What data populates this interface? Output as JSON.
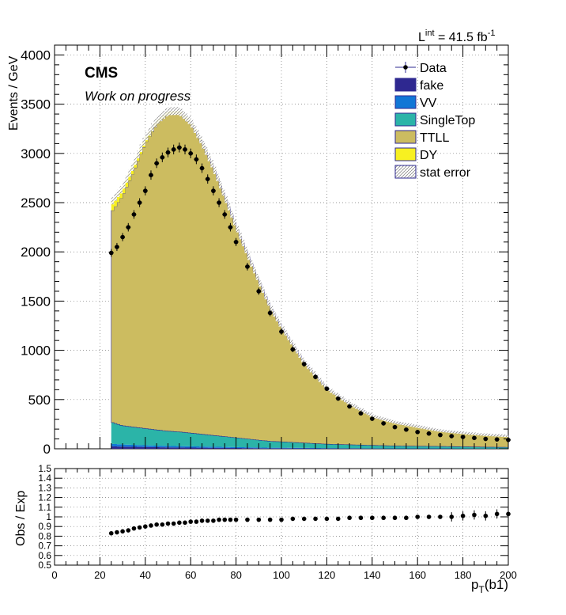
{
  "chart_data": {
    "type": "histogram",
    "lumi_label": "41.5 fb",
    "lumi_prefix": "L",
    "lumi_sup": "int",
    "lumi_unit_sup": "-1",
    "experiment": "CMS",
    "subtitle": "Work on progress",
    "ylabel": "Events / GeV",
    "ratio_ylabel": "Obs / Exp",
    "xlabel_main": "p",
    "xlabel_sub": "T",
    "xlabel_tail": "(b1)",
    "xlim": [
      0,
      200
    ],
    "ylim": [
      0,
      4100
    ],
    "ratio_ylim": [
      0.5,
      1.5
    ],
    "x_ticks": [
      "0",
      "20",
      "40",
      "60",
      "80",
      "100",
      "120",
      "140",
      "160",
      "180",
      "200"
    ],
    "y_ticks": [
      "0",
      "500",
      "1000",
      "1500",
      "2000",
      "2500",
      "3000",
      "3500",
      "4000"
    ],
    "ratio_ticks": [
      "0.5",
      "0.6",
      "0.7",
      "0.8",
      "0.9",
      "1",
      "1.1",
      "1.2",
      "1.3",
      "1.4",
      "1.5"
    ],
    "grid": true,
    "legend": [
      {
        "label": "Data",
        "kind": "marker",
        "color": "#000000"
      },
      {
        "label": "fake",
        "kind": "box",
        "color": "#2e2890"
      },
      {
        "label": "VV",
        "kind": "box",
        "color": "#1177d6"
      },
      {
        "label": "SingleTop",
        "kind": "box",
        "color": "#2bb4a8"
      },
      {
        "label": "TTLL",
        "kind": "box",
        "color": "#ccbc60"
      },
      {
        "label": "DY",
        "kind": "box",
        "color": "#f7f021"
      },
      {
        "label": "stat error",
        "kind": "hatch",
        "color": "#999999"
      }
    ],
    "colors": {
      "fake": "#2e2890",
      "VV": "#1177d6",
      "SingleTop": "#2bb4a8",
      "TTLL": "#ccbc60",
      "DY": "#f7f021",
      "Data": "#000000",
      "frame": "#000000"
    },
    "mc_stack": {
      "x": [
        25,
        30,
        35,
        40,
        45,
        50,
        55,
        60,
        65,
        70,
        75,
        80,
        85,
        90,
        95,
        100,
        110,
        120,
        130,
        140,
        150,
        160,
        170,
        180,
        190,
        200
      ],
      "fake": [
        25,
        22,
        20,
        18,
        16,
        14,
        13,
        12,
        11,
        10,
        9,
        8,
        7,
        6,
        5,
        5,
        4,
        3,
        3,
        2,
        2,
        2,
        2,
        1,
        1,
        1
      ],
      "VV": [
        25,
        22,
        20,
        18,
        16,
        15,
        14,
        13,
        12,
        11,
        10,
        9,
        8,
        7,
        6,
        6,
        5,
        4,
        3,
        3,
        2,
        2,
        2,
        2,
        1,
        1
      ],
      "SingleTop": [
        220,
        190,
        180,
        170,
        160,
        150,
        145,
        135,
        125,
        115,
        105,
        95,
        85,
        75,
        65,
        60,
        50,
        40,
        35,
        30,
        25,
        22,
        20,
        18,
        15,
        13
      ],
      "TTLL": [
        2130,
        2330,
        2600,
        2890,
        3100,
        3220,
        3240,
        3150,
        2960,
        2720,
        2440,
        2150,
        1880,
        1620,
        1370,
        1170,
        820,
        570,
        420,
        300,
        240,
        200,
        160,
        140,
        125,
        115
      ],
      "DY": [
        100,
        85,
        70,
        55,
        40,
        30,
        20,
        15,
        10,
        8,
        6,
        5,
        4,
        3,
        3,
        2,
        2,
        2,
        1,
        1,
        1,
        1,
        1,
        1,
        1,
        1
      ]
    },
    "data": {
      "x": [
        25,
        27.5,
        30,
        32.5,
        35,
        37.5,
        40,
        42.5,
        45,
        47.5,
        50,
        52.5,
        55,
        57.5,
        60,
        62.5,
        65,
        67.5,
        70,
        72.5,
        75,
        77.5,
        80,
        85,
        90,
        95,
        100,
        105,
        110,
        115,
        120,
        125,
        130,
        135,
        140,
        145,
        150,
        155,
        160,
        165,
        170,
        175,
        180,
        185,
        190,
        195,
        200
      ],
      "y": [
        1990,
        2050,
        2150,
        2250,
        2380,
        2500,
        2620,
        2780,
        2900,
        2960,
        3010,
        3040,
        3060,
        3040,
        3000,
        2940,
        2850,
        2740,
        2620,
        2500,
        2380,
        2250,
        2100,
        1850,
        1600,
        1380,
        1190,
        1010,
        860,
        730,
        610,
        510,
        430,
        360,
        305,
        258,
        220,
        195,
        170,
        155,
        140,
        128,
        120,
        110,
        100,
        95,
        90
      ],
      "ratio": [
        0.83,
        0.84,
        0.85,
        0.86,
        0.88,
        0.89,
        0.9,
        0.91,
        0.92,
        0.92,
        0.93,
        0.93,
        0.94,
        0.94,
        0.95,
        0.95,
        0.96,
        0.96,
        0.96,
        0.97,
        0.97,
        0.97,
        0.97,
        0.97,
        0.97,
        0.97,
        0.97,
        0.98,
        0.98,
        0.98,
        0.98,
        0.98,
        0.99,
        0.99,
        0.99,
        0.99,
        0.99,
        0.99,
        1.0,
        1.0,
        1.0,
        1.0,
        1.01,
        1.02,
        1.01,
        1.03,
        1.03
      ]
    }
  }
}
